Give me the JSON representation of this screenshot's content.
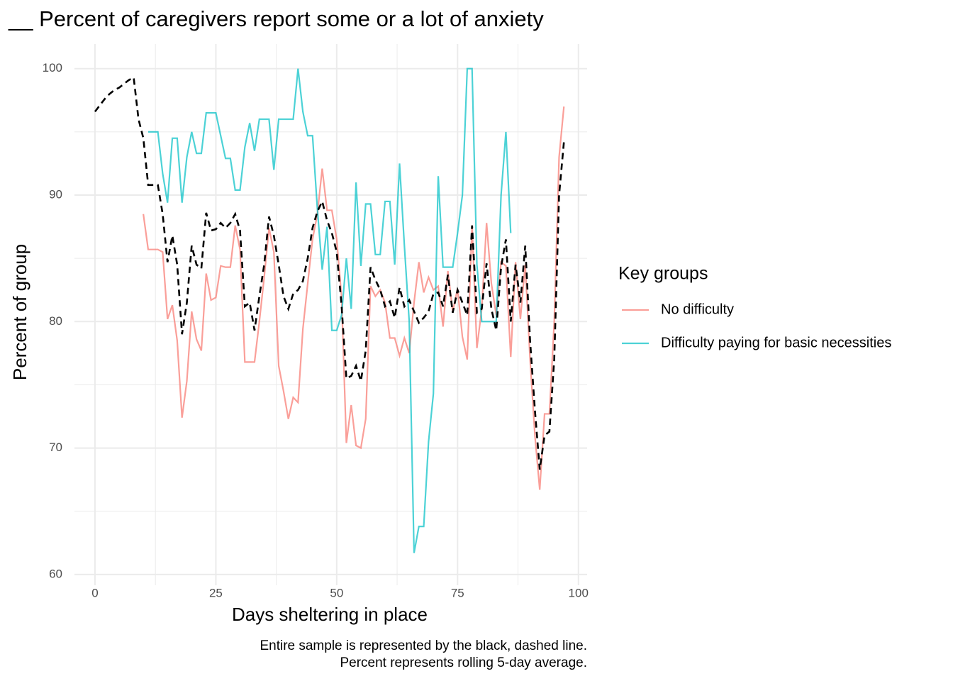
{
  "chart_data": {
    "type": "line",
    "title": "__ Percent of caregivers report some or a lot of anxiety",
    "x_label": "Days sheltering in place",
    "y_label": "Percent of group",
    "legend_title": "Key groups",
    "caption_lines": [
      "Entire sample is represented by the black, dashed line.",
      "Percent represents rolling 5-day average."
    ],
    "xlim": [
      -4.25,
      101.8
    ],
    "ylim": [
      59.15,
      101.95
    ],
    "xticks": [
      0,
      25,
      50,
      75,
      100
    ],
    "yticks": [
      60,
      70,
      80,
      90,
      100
    ],
    "x_minor_grid": [
      12.5,
      37.5,
      62.5,
      87.5
    ],
    "y_minor_grid": [
      65,
      75,
      85,
      95
    ],
    "grid": true,
    "legend_position": "right",
    "x": [
      0,
      1,
      2,
      3,
      4,
      5,
      6,
      7,
      8,
      9,
      10,
      11,
      12,
      13,
      14,
      15,
      16,
      17,
      18,
      19,
      20,
      21,
      22,
      23,
      24,
      25,
      26,
      27,
      28,
      29,
      30,
      31,
      32,
      33,
      34,
      35,
      36,
      37,
      38,
      39,
      40,
      41,
      42,
      43,
      44,
      45,
      46,
      47,
      48,
      49,
      50,
      51,
      52,
      53,
      54,
      55,
      56,
      57,
      58,
      59,
      60,
      61,
      62,
      63,
      64,
      65,
      66,
      67,
      68,
      69,
      70,
      71,
      72,
      73,
      74,
      75,
      76,
      77,
      78,
      79,
      80,
      81,
      82,
      83,
      84,
      85,
      86,
      87,
      88,
      89,
      90,
      91,
      92,
      93,
      94,
      95,
      96,
      97
    ],
    "series": [
      {
        "name": "No difficulty",
        "color": "#f8766d",
        "values": [
          null,
          null,
          null,
          null,
          null,
          null,
          null,
          null,
          null,
          null,
          88.5,
          85.7,
          85.7,
          85.7,
          85.5,
          80.2,
          81.3,
          78.5,
          72.4,
          75.3,
          80.8,
          78.6,
          77.7,
          83.8,
          81.7,
          81.9,
          84.4,
          84.3,
          84.3,
          87.6,
          85.7,
          76.8,
          76.8,
          76.8,
          80.0,
          83.5,
          87.4,
          85.5,
          76.5,
          74.5,
          72.3,
          74.0,
          73.6,
          79.4,
          83.0,
          86.5,
          88.5,
          92.1,
          88.8,
          88.8,
          86.5,
          82.0,
          70.4,
          73.4,
          70.2,
          70.0,
          72.3,
          82.8,
          82.0,
          82.5,
          81.5,
          78.7,
          78.7,
          77.3,
          78.7,
          77.5,
          81.5,
          84.7,
          82.3,
          83.5,
          82.5,
          82.8,
          79.6,
          84.0,
          80.8,
          82.6,
          78.8,
          77.0,
          87.6,
          77.9,
          81.0,
          87.8,
          83.0,
          80.5,
          84.7,
          84.4,
          77.2,
          84.7,
          80.2,
          84.5,
          77.0,
          71.0,
          66.7,
          72.7,
          72.7,
          80.0,
          93.0,
          97.0
        ]
      },
      {
        "name": "Difficulty paying for basic necessities",
        "color": "#00bfc4",
        "values": [
          null,
          null,
          null,
          null,
          null,
          null,
          null,
          null,
          null,
          null,
          null,
          95,
          95,
          95,
          91.7,
          89.4,
          94.5,
          94.5,
          89.4,
          93.0,
          95.0,
          93.3,
          93.3,
          96.5,
          96.5,
          96.5,
          94.7,
          92.9,
          92.9,
          90.4,
          90.4,
          93.8,
          95.7,
          93.5,
          96.0,
          96.0,
          96.0,
          92.0,
          96.0,
          96.0,
          96.0,
          96.0,
          100.0,
          96.6,
          94.7,
          94.7,
          88.9,
          84.1,
          87.5,
          79.3,
          79.3,
          80.5,
          85.0,
          81.0,
          91.0,
          84.4,
          89.3,
          89.3,
          85.3,
          85.3,
          89.5,
          89.5,
          84.5,
          92.5,
          86.0,
          80.0,
          61.7,
          63.8,
          63.8,
          70.5,
          74.3,
          91.5,
          84.3,
          84.3,
          84.3,
          87.0,
          90.0,
          100.0,
          100.0,
          84.5,
          80.0,
          80.0,
          80.0,
          80.0,
          90.0,
          95.0,
          87.0,
          null,
          null,
          null,
          null,
          null,
          null,
          null,
          null,
          null,
          null,
          null
        ]
      },
      {
        "color": "#000000",
        "dashed": true,
        "values": [
          96.6,
          97.1,
          97.6,
          98.0,
          98.3,
          98.5,
          98.8,
          99.1,
          99.3,
          96.0,
          94.5,
          90.8,
          90.8,
          90.8,
          88.5,
          84.7,
          86.8,
          84.5,
          79.0,
          81.5,
          86.0,
          84.5,
          84.2,
          88.6,
          87.2,
          87.3,
          87.8,
          87.4,
          87.8,
          88.5,
          87.2,
          81.2,
          81.5,
          79.3,
          82.0,
          84.5,
          88.3,
          86.8,
          84.5,
          82.0,
          81.0,
          82.2,
          82.5,
          83.2,
          85.0,
          87.4,
          88.7,
          89.5,
          88.0,
          87.0,
          85.5,
          81.3,
          75.5,
          75.7,
          76.5,
          75.3,
          77.7,
          84.3,
          83.3,
          82.5,
          81.2,
          81.6,
          80.3,
          82.7,
          81.2,
          81.7,
          80.8,
          79.9,
          80.3,
          80.8,
          82.2,
          82.3,
          81.2,
          83.7,
          80.7,
          82.5,
          81.5,
          80.5,
          87.6,
          80.7,
          81.0,
          84.6,
          81.0,
          79.3,
          84.3,
          86.5,
          80.0,
          84.5,
          81.5,
          86.0,
          78.5,
          73.0,
          68.3,
          71.0,
          71.3,
          77.0,
          90.0,
          94.2
        ]
      }
    ]
  }
}
